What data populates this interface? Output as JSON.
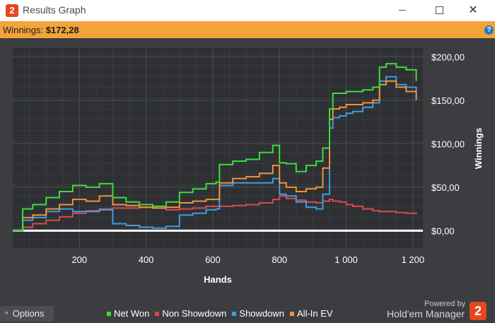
{
  "window": {
    "icon": "2",
    "title": "Results Graph",
    "controls": [
      "minimize-icon",
      "maximize-icon",
      "close-icon"
    ]
  },
  "winnings": {
    "label": "Winnings:",
    "value": "$172,28"
  },
  "help": {
    "icon": "question-icon",
    "glyph": "?"
  },
  "chart_data": {
    "type": "line",
    "xlabel": "Hands",
    "ylabel": "Winnings",
    "xlim": [
      0,
      1230
    ],
    "ylim": [
      -20,
      210
    ],
    "x_ticks": [
      200,
      400,
      600,
      800,
      1000,
      1200
    ],
    "x_tick_labels": [
      "200",
      "400",
      "600",
      "800",
      "1 000",
      "1 200"
    ],
    "y_ticks": [
      0,
      50,
      100,
      150,
      200
    ],
    "y_tick_labels": [
      "$0,00",
      "$50,00",
      "$100,00",
      "$150,00",
      "$200,00"
    ],
    "grid": true,
    "legend_position": "bottom",
    "x": [
      0,
      30,
      60,
      100,
      140,
      180,
      220,
      260,
      300,
      340,
      380,
      420,
      460,
      500,
      540,
      580,
      610,
      620,
      660,
      700,
      740,
      780,
      800,
      820,
      850,
      880,
      910,
      930,
      950,
      960,
      980,
      1000,
      1020,
      1050,
      1080,
      1100,
      1120,
      1150,
      1180,
      1210
    ],
    "series": [
      {
        "name": "Net Won",
        "color": "#3ddc3d",
        "values": [
          0,
          25,
          30,
          38,
          45,
          52,
          50,
          54,
          38,
          33,
          30,
          28,
          33,
          44,
          48,
          54,
          56,
          76,
          80,
          82,
          90,
          98,
          78,
          77,
          68,
          75,
          80,
          95,
          140,
          158,
          158,
          160,
          160,
          162,
          165,
          188,
          192,
          188,
          185,
          172
        ]
      },
      {
        "name": "Non Showdown",
        "color": "#d94a4a",
        "values": [
          0,
          4,
          8,
          12,
          16,
          20,
          23,
          25,
          26,
          26,
          27,
          26,
          24,
          25,
          26,
          28,
          28,
          28,
          29,
          30,
          32,
          36,
          40,
          37,
          35,
          33,
          32,
          34,
          36,
          34,
          33,
          30,
          28,
          25,
          23,
          22,
          22,
          21,
          20,
          19
        ]
      },
      {
        "name": "Showdown",
        "color": "#3d9de0",
        "values": [
          0,
          12,
          15,
          22,
          25,
          22,
          22,
          24,
          8,
          6,
          4,
          3,
          5,
          18,
          20,
          24,
          25,
          52,
          55,
          55,
          55,
          60,
          42,
          40,
          33,
          27,
          25,
          42,
          118,
          130,
          132,
          135,
          137,
          142,
          147,
          172,
          177,
          168,
          165,
          152
        ]
      },
      {
        "name": "All-In EV",
        "color": "#f2923a",
        "values": [
          0,
          15,
          18,
          25,
          30,
          36,
          34,
          40,
          30,
          29,
          27,
          26,
          27,
          32,
          34,
          36,
          36,
          55,
          60,
          62,
          66,
          75,
          55,
          50,
          45,
          48,
          50,
          72,
          128,
          140,
          142,
          145,
          145,
          147,
          150,
          168,
          172,
          165,
          160,
          150
        ]
      }
    ]
  },
  "footer": {
    "options_label": "Options",
    "legend": [
      {
        "label": "Net Won",
        "color": "#3ddc3d"
      },
      {
        "label": "Non Showdown",
        "color": "#d94a4a"
      },
      {
        "label": "Showdown",
        "color": "#3d9de0"
      },
      {
        "label": "All-In EV",
        "color": "#f2923a"
      }
    ],
    "powered_by": "Powered by",
    "brand": "Hold'em Manager",
    "brand_logo": "2"
  }
}
